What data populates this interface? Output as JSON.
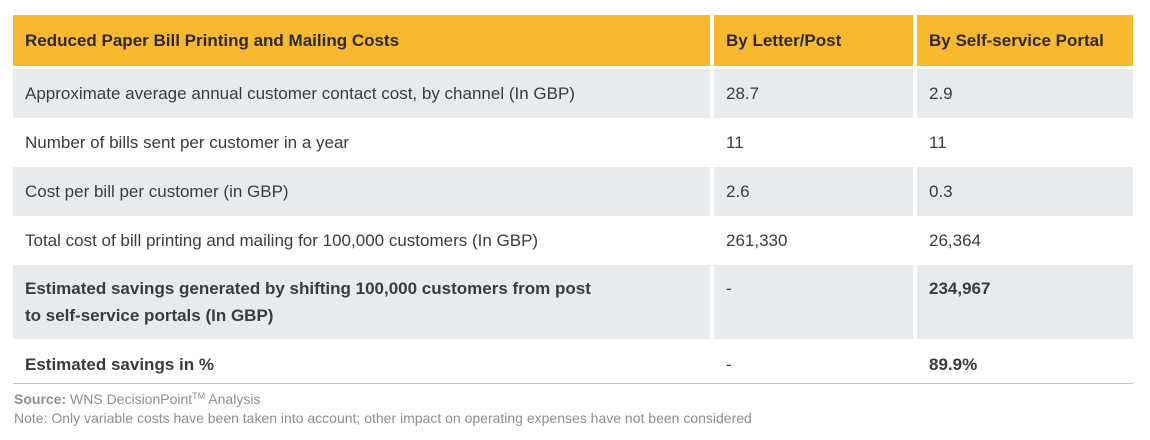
{
  "table": {
    "headers": [
      "Reduced Paper Bill Printing and Mailing Costs",
      "By Letter/Post",
      "By Self-service Portal"
    ],
    "rows": [
      {
        "label": "Approximate average annual customer contact cost, by channel (In GBP)",
        "post": "28.7",
        "portal": "2.9"
      },
      {
        "label": "Number of bills sent per customer in a year",
        "post": "11",
        "portal": "11"
      },
      {
        "label": "Cost per bill per customer (in GBP)",
        "post": "2.6",
        "portal": "0.3"
      },
      {
        "label": "Total cost of bill printing and mailing for 100,000 customers (In GBP)",
        "post": "261,330",
        "portal": "26,364"
      },
      {
        "label_line1": "Estimated savings generated by shifting 100,000 customers from post",
        "label_line2": "to self-service portals (In GBP)",
        "post": "-",
        "portal": "234,967"
      },
      {
        "label": "Estimated savings in %",
        "post": "-",
        "portal": "89.9%"
      }
    ]
  },
  "footer": {
    "source_label": "Source:",
    "source_text": "WNS DecisionPoint",
    "source_tm": "TM",
    "source_suffix": "Analysis",
    "note": "Note: Only variable costs have been taken into account; other impact on operating expenses have not been considered"
  }
}
